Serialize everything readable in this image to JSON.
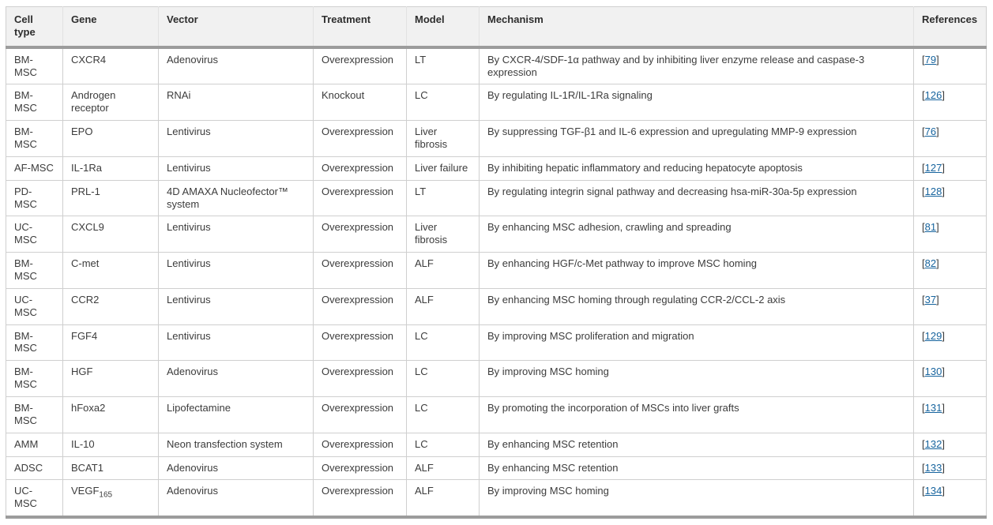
{
  "colors": {
    "link_blue": "#17649e",
    "header_background": "#f1f1f1",
    "thick_rule_gray": "#9c9c9c",
    "gridline_gray": "#cfcfcf",
    "body_text": "#3c3c3c"
  },
  "table": {
    "columns": [
      {
        "key": "cell_type",
        "label": "Cell type"
      },
      {
        "key": "gene",
        "label": "Gene"
      },
      {
        "key": "vector",
        "label": "Vector"
      },
      {
        "key": "treatment",
        "label": "Treatment"
      },
      {
        "key": "model",
        "label": "Model"
      },
      {
        "key": "mechanism",
        "label": "Mechanism"
      },
      {
        "key": "references",
        "label": "References"
      }
    ],
    "rows": [
      {
        "cell_type": "BM-MSC",
        "gene": "CXCR4",
        "vector": "Adenovirus",
        "treatment": "Overexpression",
        "model": "LT",
        "mechanism": "By CXCR-4/SDF-1α pathway and by inhibiting liver enzyme release and caspase-3 expression",
        "ref": "79"
      },
      {
        "cell_type": "BM-MSC",
        "gene": "Androgen receptor",
        "vector": "RNAi",
        "treatment": "Knockout",
        "model": "LC",
        "mechanism": "By regulating IL-1R/IL-1Ra signaling",
        "ref": "126"
      },
      {
        "cell_type": "BM-MSC",
        "gene": "EPO",
        "vector": "Lentivirus",
        "treatment": "Overexpression",
        "model": "Liver fibrosis",
        "mechanism": "By suppressing TGF-β1 and IL-6 expression and upregulating MMP-9 expression",
        "ref": "76"
      },
      {
        "cell_type": "AF-MSC",
        "gene": "IL-1Ra",
        "vector": "Lentivirus",
        "treatment": "Overexpression",
        "model": "Liver failure",
        "mechanism": "By inhibiting hepatic inflammatory and reducing hepatocyte apoptosis",
        "ref": "127"
      },
      {
        "cell_type": "PD-MSC",
        "gene": "PRL-1",
        "vector": "4D AMAXA Nucleofector™ system",
        "treatment": "Overexpression",
        "model": "LT",
        "mechanism": "By regulating integrin signal pathway and decreasing hsa-miR-30a-5p expression",
        "ref": "128"
      },
      {
        "cell_type": "UC-MSC",
        "gene": "CXCL9",
        "vector": "Lentivirus",
        "treatment": "Overexpression",
        "model": "Liver fibrosis",
        "mechanism": "By enhancing MSC adhesion, crawling and spreading",
        "ref": "81"
      },
      {
        "cell_type": "BM-MSC",
        "gene": "C-met",
        "vector": "Lentivirus",
        "treatment": "Overexpression",
        "model": "ALF",
        "mechanism": "By enhancing HGF/c-Met pathway to improve MSC homing",
        "ref": "82"
      },
      {
        "cell_type": "UC-MSC",
        "gene": "CCR2",
        "vector": "Lentivirus",
        "treatment": "Overexpression",
        "model": "ALF",
        "mechanism": "By enhancing MSC homing through regulating CCR-2/CCL-2 axis",
        "ref": "37"
      },
      {
        "cell_type": "BM-MSC",
        "gene": "FGF4",
        "vector": "Lentivirus",
        "treatment": "Overexpression",
        "model": "LC",
        "mechanism": "By improving MSC proliferation and migration",
        "ref": "129"
      },
      {
        "cell_type": "BM-MSC",
        "gene": "HGF",
        "vector": "Adenovirus",
        "treatment": "Overexpression",
        "model": "LC",
        "mechanism": "By improving MSC homing",
        "ref": "130"
      },
      {
        "cell_type": "BM-MSC",
        "gene": "hFoxa2",
        "vector": "Lipofectamine",
        "treatment": "Overexpression",
        "model": "LC",
        "mechanism": "By promoting the incorporation of MSCs into liver grafts",
        "ref": "131"
      },
      {
        "cell_type": "AMM",
        "gene": "IL-10",
        "vector": "Neon transfection system",
        "treatment": "Overexpression",
        "model": "LC",
        "mechanism": "By enhancing MSC retention",
        "ref": "132"
      },
      {
        "cell_type": "ADSC",
        "gene": "BCAT1",
        "vector": "Adenovirus",
        "treatment": "Overexpression",
        "model": "ALF",
        "mechanism": "By enhancing MSC retention",
        "ref": "133"
      },
      {
        "cell_type": "UC-MSC",
        "gene": "VEGF",
        "gene_sub": "165",
        "vector": "Adenovirus",
        "treatment": "Overexpression",
        "model": "ALF",
        "mechanism": "By improving MSC homing",
        "ref": "134"
      }
    ]
  }
}
